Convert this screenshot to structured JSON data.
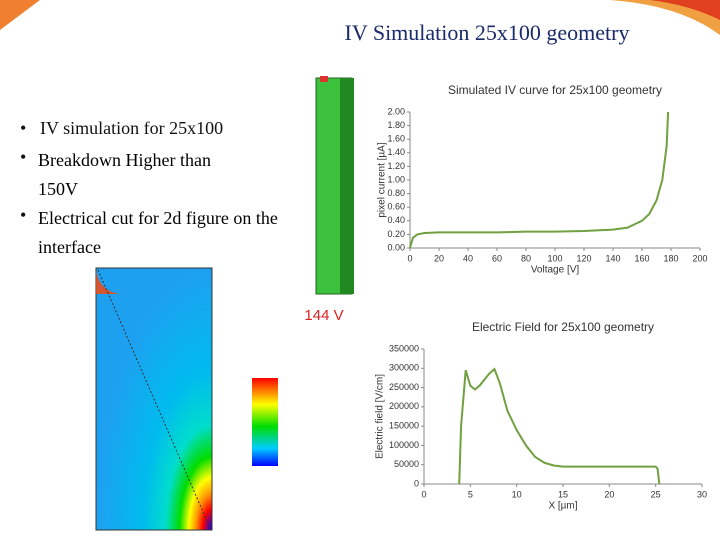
{
  "title": "IV Simulation 25x100 geometry",
  "bullets": [
    "IV simulation for 25x100",
    "Breakdown Higher than 150V",
    "Electrical cut for 2d figure on the interface"
  ],
  "voltage_label": "144 V",
  "chart_data": [
    {
      "type": "line",
      "title": "Simulated IV curve for 25x100 geometry",
      "x_label": "Voltage [V]",
      "y_label": "pixel current [µA]",
      "color": "#70a040",
      "x": [
        0,
        2,
        5,
        10,
        20,
        40,
        60,
        80,
        100,
        120,
        140,
        150,
        160,
        165,
        170,
        174,
        177,
        178
      ],
      "values": [
        0,
        0.15,
        0.2,
        0.22,
        0.23,
        0.23,
        0.23,
        0.24,
        0.24,
        0.25,
        0.27,
        0.3,
        0.4,
        0.5,
        0.7,
        1.0,
        1.5,
        2.0
      ],
      "xlim": [
        0,
        200
      ],
      "xticks": [
        0,
        20,
        40,
        60,
        80,
        100,
        120,
        140,
        160,
        180,
        200
      ],
      "ylim": [
        0,
        2
      ],
      "yticks": [
        {
          "value": 0,
          "label": "0.00"
        },
        {
          "value": 0.2,
          "label": "0.20"
        },
        {
          "value": 0.4,
          "label": "0.40"
        },
        {
          "value": 0.6,
          "label": "0.60"
        },
        {
          "value": 0.8,
          "label": "0.80"
        },
        {
          "value": 1,
          "label": "1.00"
        },
        {
          "value": 1.2,
          "label": "1.20"
        },
        {
          "value": 1.4,
          "label": "1.40"
        },
        {
          "value": 1.6,
          "label": "1.60"
        },
        {
          "value": 1.8,
          "label": "1.80"
        },
        {
          "value": 2,
          "label": "2.00"
        }
      ]
    },
    {
      "type": "line",
      "title": "Electric Field for 25x100 geometry",
      "x_label": "X [µm]",
      "y_label": "Electric field [V/cm]",
      "color": "#70a040",
      "x": [
        3.8,
        4.0,
        4.5,
        5.0,
        5.5,
        6.0,
        7.0,
        7.6,
        8.2,
        9.0,
        10.0,
        11.0,
        12.0,
        13.0,
        14.0,
        15.0,
        20.0,
        25.0,
        25.2,
        25.4
      ],
      "values": [
        0,
        150000,
        295000,
        255000,
        245000,
        255000,
        285000,
        298000,
        260000,
        190000,
        140000,
        100000,
        70000,
        55000,
        48000,
        45000,
        45000,
        45000,
        40000,
        0
      ],
      "xlim": [
        0,
        30
      ],
      "xticks": [
        0,
        5,
        10,
        15,
        20,
        25,
        30
      ],
      "ylim": [
        0,
        350000
      ],
      "yticks": [
        0,
        50000,
        100000,
        150000,
        200000,
        250000,
        300000,
        350000
      ]
    }
  ]
}
